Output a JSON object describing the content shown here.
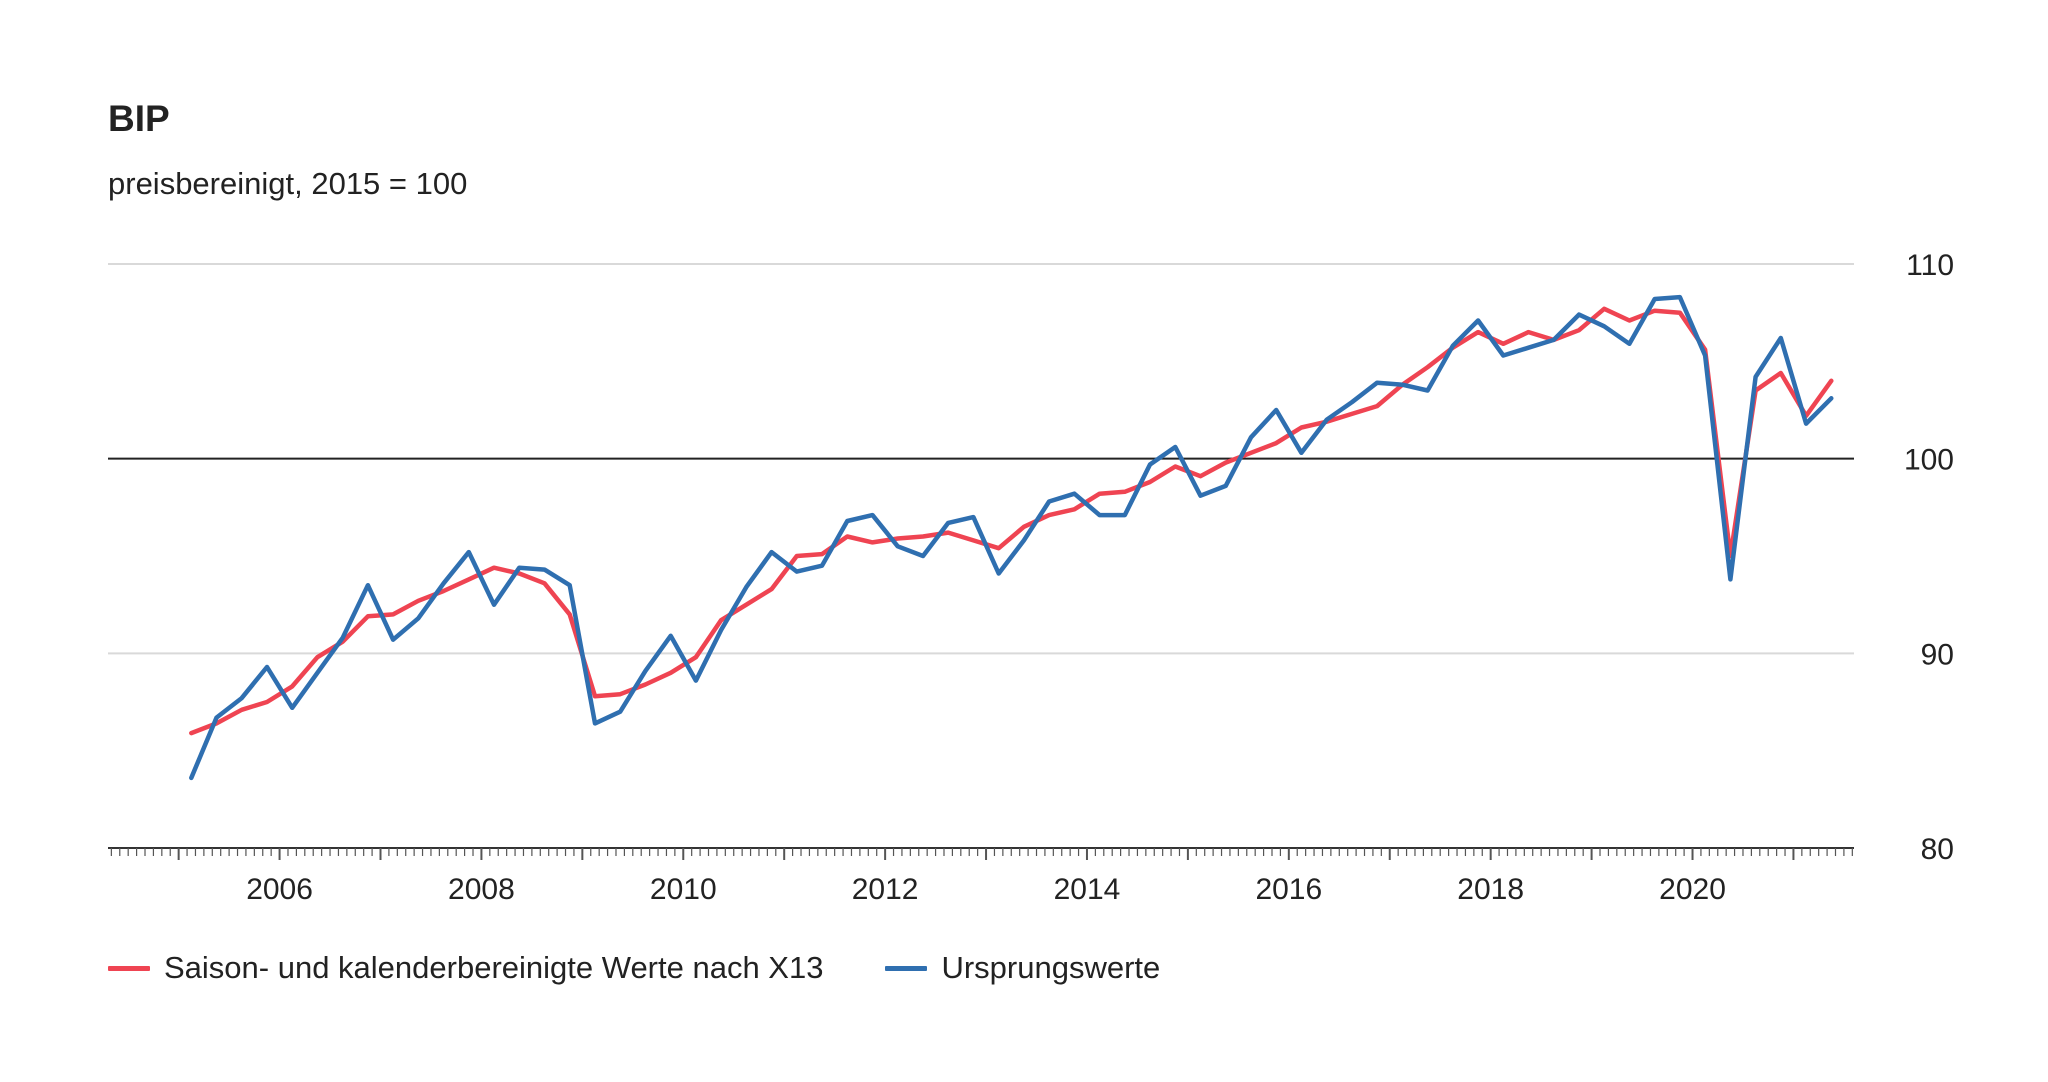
{
  "colors": {
    "adjusted": "#ef4452",
    "original": "#2f6fb0",
    "grid": "#d9d9d9",
    "baseline": "#222222"
  },
  "chart_data": {
    "type": "line",
    "title": "BIP",
    "subtitle": "preisbereinigt, 2015 = 100",
    "ylim": [
      80,
      110
    ],
    "yticks": [
      80,
      90,
      100,
      110
    ],
    "xlim": [
      2004.3,
      2021.6
    ],
    "xticks": [
      2006,
      2008,
      2010,
      2012,
      2014,
      2016,
      2018,
      2020
    ],
    "reference_line": 100,
    "y_axis_position": "right",
    "grid": true,
    "legend_position": "bottom-left",
    "x": [
      2005.125,
      2005.375,
      2005.625,
      2005.875,
      2006.125,
      2006.375,
      2006.625,
      2006.875,
      2007.125,
      2007.375,
      2007.625,
      2007.875,
      2008.125,
      2008.375,
      2008.625,
      2008.875,
      2009.125,
      2009.375,
      2009.625,
      2009.875,
      2010.125,
      2010.375,
      2010.625,
      2010.875,
      2011.125,
      2011.375,
      2011.625,
      2011.875,
      2012.125,
      2012.375,
      2012.625,
      2012.875,
      2013.125,
      2013.375,
      2013.625,
      2013.875,
      2014.125,
      2014.375,
      2014.625,
      2014.875,
      2015.125,
      2015.375,
      2015.625,
      2015.875,
      2016.125,
      2016.375,
      2016.625,
      2016.875,
      2017.125,
      2017.375,
      2017.625,
      2017.875,
      2018.125,
      2018.375,
      2018.625,
      2018.875,
      2019.125,
      2019.375,
      2019.625,
      2019.875,
      2020.125,
      2020.375,
      2020.625,
      2020.875,
      2021.125,
      2021.375
    ],
    "series": [
      {
        "name": "Saison- und kalenderbereinigte Werte nach X13",
        "color": "#ef4452",
        "values": [
          85.9,
          86.4,
          87.1,
          87.5,
          88.3,
          89.8,
          90.6,
          91.9,
          92.0,
          92.7,
          93.2,
          93.8,
          94.4,
          94.1,
          93.6,
          92.0,
          87.8,
          87.9,
          88.4,
          89.0,
          89.8,
          91.7,
          92.5,
          93.3,
          95.0,
          95.1,
          96.0,
          95.7,
          95.9,
          96.0,
          96.2,
          95.8,
          95.4,
          96.5,
          97.1,
          97.4,
          98.2,
          98.3,
          98.8,
          99.6,
          99.1,
          99.8,
          100.3,
          100.8,
          101.6,
          101.9,
          102.3,
          102.7,
          103.8,
          104.7,
          105.7,
          106.5,
          105.9,
          106.5,
          106.1,
          106.6,
          107.7,
          107.1,
          107.6,
          107.5,
          105.6,
          95.0,
          103.5,
          104.4,
          102.2,
          104.0
        ]
      },
      {
        "name": "Ursprungswerte",
        "color": "#2f6fb0",
        "values": [
          83.6,
          86.7,
          87.7,
          89.3,
          87.2,
          89.0,
          90.8,
          93.5,
          90.7,
          91.8,
          93.6,
          95.2,
          92.5,
          94.4,
          94.3,
          93.5,
          86.4,
          87.0,
          89.1,
          90.9,
          88.6,
          91.2,
          93.4,
          95.2,
          94.2,
          94.5,
          96.8,
          97.1,
          95.5,
          95.0,
          96.7,
          97.0,
          94.1,
          95.8,
          97.8,
          98.2,
          97.1,
          97.1,
          99.7,
          100.6,
          98.1,
          98.6,
          101.1,
          102.5,
          100.3,
          102.0,
          102.9,
          103.9,
          103.8,
          103.5,
          105.8,
          107.1,
          105.3,
          105.7,
          106.1,
          107.4,
          106.8,
          105.9,
          108.2,
          108.3,
          105.3,
          93.8,
          104.2,
          106.2,
          101.8,
          103.1
        ]
      }
    ]
  }
}
